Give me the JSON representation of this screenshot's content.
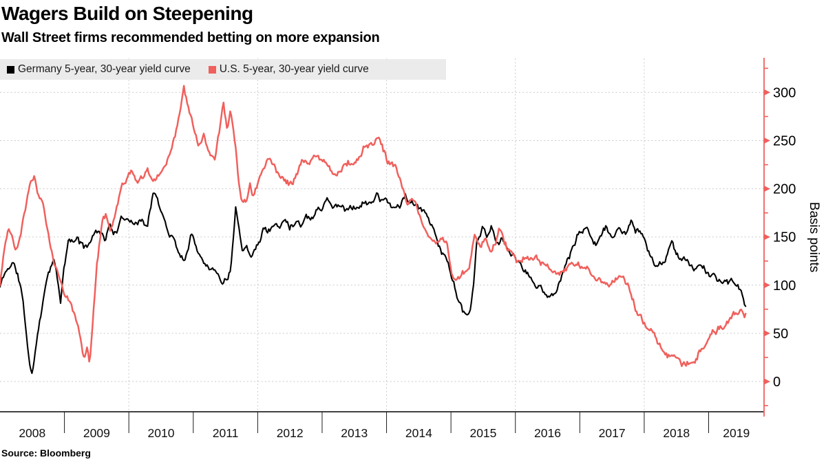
{
  "page": {
    "title": "Wagers Build on Steepening",
    "subtitle": "Wall Street firms recommended betting on more expansion",
    "source_label": "Source:  Bloomberg"
  },
  "legend": {
    "items": [
      {
        "label": "Germany 5-year, 30-year yield curve",
        "color": "#000000"
      },
      {
        "label": "U.S. 5-year, 30-year yield curve",
        "color": "#f0605c"
      }
    ]
  },
  "axis": {
    "y_label": "Basis points",
    "y_ticks": [
      "0",
      "50",
      "100",
      "150",
      "200",
      "250",
      "300"
    ],
    "x_ticks": [
      "2008",
      "2009",
      "2010",
      "2011",
      "2012",
      "2013",
      "2014",
      "2015",
      "2016",
      "2017",
      "2018",
      "2019"
    ]
  },
  "colors": {
    "background": "#ffffff",
    "grid": "#c9c9c9",
    "axis_red": "#f0605c",
    "axis_black": "#000000",
    "legend_bg": "#ebebeb",
    "text": "#000000"
  },
  "chart_data": {
    "type": "line",
    "title": "Wagers Build on Steepening",
    "subtitle": "Wall Street firms recommended betting on more expansion",
    "ylabel": "Basis points",
    "unit": "basis points",
    "ylim": [
      0,
      300
    ],
    "y_tick_step": 50,
    "y_minor_step": 25,
    "x_range": [
      2008,
      2019.86
    ],
    "grid_vertical_years": [
      2010,
      2012,
      2014,
      2016,
      2018
    ],
    "legend_position": "top-left",
    "noise_bp": 4.2,
    "series": [
      {
        "name": "Germany 5-year, 30-year yield curve",
        "color": "#000000",
        "width": 2.1,
        "points": [
          [
            2008.0,
            98
          ],
          [
            2008.06,
            110
          ],
          [
            2008.13,
            118
          ],
          [
            2008.2,
            124
          ],
          [
            2008.27,
            112
          ],
          [
            2008.33,
            95
          ],
          [
            2008.4,
            55
          ],
          [
            2008.46,
            18
          ],
          [
            2008.5,
            4
          ],
          [
            2008.54,
            28
          ],
          [
            2008.6,
            60
          ],
          [
            2008.67,
            85
          ],
          [
            2008.75,
            118
          ],
          [
            2008.83,
            127
          ],
          [
            2008.88,
            112
          ],
          [
            2008.94,
            82
          ],
          [
            2009.0,
            118
          ],
          [
            2009.07,
            148
          ],
          [
            2009.15,
            142
          ],
          [
            2009.21,
            150
          ],
          [
            2009.29,
            138
          ],
          [
            2009.38,
            145
          ],
          [
            2009.46,
            152
          ],
          [
            2009.54,
            160
          ],
          [
            2009.63,
            150
          ],
          [
            2009.71,
            162
          ],
          [
            2009.79,
            155
          ],
          [
            2009.88,
            165
          ],
          [
            2009.96,
            170
          ],
          [
            2010.04,
            172
          ],
          [
            2010.13,
            164
          ],
          [
            2010.21,
            170
          ],
          [
            2010.29,
            162
          ],
          [
            2010.38,
            200
          ],
          [
            2010.46,
            182
          ],
          [
            2010.54,
            168
          ],
          [
            2010.63,
            155
          ],
          [
            2010.71,
            148
          ],
          [
            2010.79,
            133
          ],
          [
            2010.85,
            127
          ],
          [
            2010.92,
            140
          ],
          [
            2010.96,
            155
          ],
          [
            2011.04,
            143
          ],
          [
            2011.13,
            132
          ],
          [
            2011.21,
            125
          ],
          [
            2011.29,
            118
          ],
          [
            2011.38,
            112
          ],
          [
            2011.46,
            106
          ],
          [
            2011.52,
            108
          ],
          [
            2011.58,
            118
          ],
          [
            2011.66,
            188
          ],
          [
            2011.71,
            160
          ],
          [
            2011.77,
            138
          ],
          [
            2011.83,
            148
          ],
          [
            2011.9,
            132
          ],
          [
            2011.96,
            142
          ],
          [
            2012.02,
            146
          ],
          [
            2012.09,
            160
          ],
          [
            2012.16,
            156
          ],
          [
            2012.25,
            165
          ],
          [
            2012.33,
            158
          ],
          [
            2012.42,
            168
          ],
          [
            2012.5,
            160
          ],
          [
            2012.58,
            170
          ],
          [
            2012.67,
            165
          ],
          [
            2012.75,
            175
          ],
          [
            2012.83,
            170
          ],
          [
            2012.92,
            180
          ],
          [
            2013.0,
            182
          ],
          [
            2013.07,
            193
          ],
          [
            2013.15,
            180
          ],
          [
            2013.25,
            186
          ],
          [
            2013.35,
            178
          ],
          [
            2013.45,
            184
          ],
          [
            2013.55,
            182
          ],
          [
            2013.65,
            188
          ],
          [
            2013.75,
            182
          ],
          [
            2013.85,
            196
          ],
          [
            2013.93,
            186
          ],
          [
            2014.0,
            187
          ],
          [
            2014.1,
            178
          ],
          [
            2014.2,
            183
          ],
          [
            2014.29,
            192
          ],
          [
            2014.38,
            184
          ],
          [
            2014.46,
            180
          ],
          [
            2014.54,
            175
          ],
          [
            2014.62,
            172
          ],
          [
            2014.72,
            161
          ],
          [
            2014.83,
            141
          ],
          [
            2014.95,
            122
          ],
          [
            2015.02,
            108
          ],
          [
            2015.1,
            90
          ],
          [
            2015.19,
            72
          ],
          [
            2015.28,
            64
          ],
          [
            2015.35,
            95
          ],
          [
            2015.4,
            141
          ],
          [
            2015.49,
            158
          ],
          [
            2015.56,
            146
          ],
          [
            2015.63,
            155
          ],
          [
            2015.7,
            143
          ],
          [
            2015.78,
            150
          ],
          [
            2015.85,
            138
          ],
          [
            2015.93,
            130
          ],
          [
            2016.0,
            128
          ],
          [
            2016.08,
            120
          ],
          [
            2016.17,
            112
          ],
          [
            2016.25,
            106
          ],
          [
            2016.33,
            99
          ],
          [
            2016.42,
            93
          ],
          [
            2016.5,
            90
          ],
          [
            2016.57,
            88
          ],
          [
            2016.65,
            100
          ],
          [
            2016.75,
            115
          ],
          [
            2016.85,
            135
          ],
          [
            2016.97,
            152
          ],
          [
            2017.08,
            158
          ],
          [
            2017.18,
            151
          ],
          [
            2017.29,
            149
          ],
          [
            2017.4,
            158
          ],
          [
            2017.5,
            152
          ],
          [
            2017.61,
            156
          ],
          [
            2017.7,
            150
          ],
          [
            2017.8,
            164
          ],
          [
            2017.88,
            157
          ],
          [
            2017.97,
            149
          ],
          [
            2018.04,
            133
          ],
          [
            2018.11,
            127
          ],
          [
            2018.2,
            120
          ],
          [
            2018.3,
            124
          ],
          [
            2018.43,
            140
          ],
          [
            2018.5,
            130
          ],
          [
            2018.57,
            125
          ],
          [
            2018.68,
            127
          ],
          [
            2018.79,
            119
          ],
          [
            2018.9,
            117
          ],
          [
            2019.0,
            111
          ],
          [
            2019.07,
            108
          ],
          [
            2019.18,
            105
          ],
          [
            2019.29,
            103
          ],
          [
            2019.39,
            101
          ],
          [
            2019.46,
            94
          ],
          [
            2019.53,
            90
          ],
          [
            2019.56,
            82
          ],
          [
            2019.59,
            80
          ]
        ]
      },
      {
        "name": "U.S. 5-year, 30-year yield curve",
        "color": "#f0605c",
        "width": 2.5,
        "points": [
          [
            2008.0,
            103
          ],
          [
            2008.06,
            135
          ],
          [
            2008.13,
            158
          ],
          [
            2008.17,
            150
          ],
          [
            2008.22,
            140
          ],
          [
            2008.27,
            134
          ],
          [
            2008.33,
            152
          ],
          [
            2008.4,
            180
          ],
          [
            2008.46,
            200
          ],
          [
            2008.53,
            214
          ],
          [
            2008.58,
            196
          ],
          [
            2008.67,
            186
          ],
          [
            2008.75,
            152
          ],
          [
            2008.83,
            122
          ],
          [
            2008.92,
            108
          ],
          [
            2009.0,
            96
          ],
          [
            2009.08,
            88
          ],
          [
            2009.17,
            70
          ],
          [
            2009.25,
            45
          ],
          [
            2009.31,
            22
          ],
          [
            2009.35,
            32
          ],
          [
            2009.39,
            18
          ],
          [
            2009.44,
            60
          ],
          [
            2009.5,
            120
          ],
          [
            2009.58,
            165
          ],
          [
            2009.65,
            172
          ],
          [
            2009.71,
            158
          ],
          [
            2009.79,
            172
          ],
          [
            2009.88,
            195
          ],
          [
            2009.96,
            210
          ],
          [
            2010.04,
            215
          ],
          [
            2010.13,
            208
          ],
          [
            2010.21,
            213
          ],
          [
            2010.29,
            222
          ],
          [
            2010.38,
            210
          ],
          [
            2010.46,
            215
          ],
          [
            2010.54,
            222
          ],
          [
            2010.63,
            240
          ],
          [
            2010.71,
            258
          ],
          [
            2010.79,
            278
          ],
          [
            2010.85,
            305
          ],
          [
            2010.92,
            285
          ],
          [
            2011.0,
            265
          ],
          [
            2011.08,
            245
          ],
          [
            2011.17,
            256
          ],
          [
            2011.25,
            240
          ],
          [
            2011.33,
            228
          ],
          [
            2011.4,
            255
          ],
          [
            2011.47,
            283
          ],
          [
            2011.53,
            260
          ],
          [
            2011.58,
            278
          ],
          [
            2011.65,
            240
          ],
          [
            2011.74,
            188
          ],
          [
            2011.82,
            186
          ],
          [
            2011.88,
            210
          ],
          [
            2011.94,
            196
          ],
          [
            2012.02,
            204
          ],
          [
            2012.1,
            220
          ],
          [
            2012.16,
            231
          ],
          [
            2012.25,
            225
          ],
          [
            2012.33,
            215
          ],
          [
            2012.45,
            210
          ],
          [
            2012.54,
            205
          ],
          [
            2012.63,
            222
          ],
          [
            2012.71,
            232
          ],
          [
            2012.79,
            226
          ],
          [
            2012.88,
            238
          ],
          [
            2012.96,
            228
          ],
          [
            2013.04,
            230
          ],
          [
            2013.13,
            222
          ],
          [
            2013.22,
            214
          ],
          [
            2013.31,
            222
          ],
          [
            2013.4,
            227
          ],
          [
            2013.48,
            230
          ],
          [
            2013.55,
            233
          ],
          [
            2013.65,
            242
          ],
          [
            2013.73,
            248
          ],
          [
            2013.79,
            242
          ],
          [
            2013.87,
            256
          ],
          [
            2013.94,
            245
          ],
          [
            2014.02,
            225
          ],
          [
            2014.13,
            218
          ],
          [
            2014.22,
            208
          ],
          [
            2014.31,
            187
          ],
          [
            2014.4,
            193
          ],
          [
            2014.48,
            180
          ],
          [
            2014.56,
            163
          ],
          [
            2014.65,
            155
          ],
          [
            2014.74,
            148
          ],
          [
            2014.83,
            142
          ],
          [
            2014.95,
            137
          ],
          [
            2015.02,
            109
          ],
          [
            2015.1,
            103
          ],
          [
            2015.19,
            108
          ],
          [
            2015.28,
            118
          ],
          [
            2015.37,
            155
          ],
          [
            2015.45,
            142
          ],
          [
            2015.53,
            150
          ],
          [
            2015.61,
            138
          ],
          [
            2015.69,
            148
          ],
          [
            2015.76,
            158
          ],
          [
            2015.84,
            144
          ],
          [
            2015.92,
            136
          ],
          [
            2016.0,
            130
          ],
          [
            2016.08,
            124
          ],
          [
            2016.19,
            132
          ],
          [
            2016.28,
            124
          ],
          [
            2016.36,
            127
          ],
          [
            2016.45,
            118
          ],
          [
            2016.55,
            112
          ],
          [
            2016.65,
            108
          ],
          [
            2016.75,
            112
          ],
          [
            2016.85,
            118
          ],
          [
            2016.95,
            124
          ],
          [
            2017.08,
            120
          ],
          [
            2017.2,
            113
          ],
          [
            2017.3,
            108
          ],
          [
            2017.42,
            100
          ],
          [
            2017.5,
            103
          ],
          [
            2017.58,
            111
          ],
          [
            2017.69,
            104
          ],
          [
            2017.79,
            90
          ],
          [
            2017.9,
            69
          ],
          [
            2017.97,
            63
          ],
          [
            2018.04,
            56
          ],
          [
            2018.11,
            51
          ],
          [
            2018.18,
            44
          ],
          [
            2018.29,
            34
          ],
          [
            2018.39,
            30
          ],
          [
            2018.5,
            25
          ],
          [
            2018.57,
            21
          ],
          [
            2018.65,
            19
          ],
          [
            2018.73,
            22
          ],
          [
            2018.8,
            27
          ],
          [
            2018.86,
            32
          ],
          [
            2018.97,
            44
          ],
          [
            2019.07,
            51
          ],
          [
            2019.18,
            57
          ],
          [
            2019.29,
            61
          ],
          [
            2019.39,
            67
          ],
          [
            2019.5,
            75
          ],
          [
            2019.55,
            72
          ],
          [
            2019.59,
            74
          ]
        ]
      }
    ]
  }
}
